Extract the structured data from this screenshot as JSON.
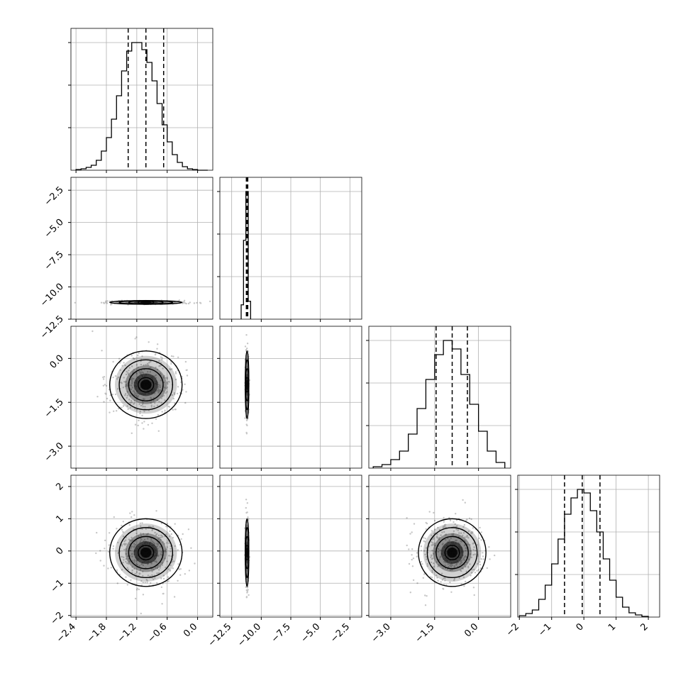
{
  "chart_data": {
    "type": "corner",
    "n_params": 4,
    "grid": true,
    "colors": {
      "line": "#000000",
      "grid": "#b0b0b0",
      "points": "#000000",
      "density": "#000000"
    },
    "params": [
      {
        "xlim": [
          -2.5,
          0.3
        ],
        "ticks": [
          -2.4,
          -1.8,
          -1.2,
          -0.6,
          0.0
        ],
        "tick_labels": [
          "−2.4",
          "−1.8",
          "−1.2",
          "−0.6",
          "0.0"
        ],
        "center": -1.02,
        "sigma": 0.34,
        "quantiles": [
          -1.37,
          -1.02,
          -0.67
        ]
      },
      {
        "xlim": [
          -13.5,
          -1.5
        ],
        "ticks": [
          -12.5,
          -10.0,
          -7.5,
          -5.0,
          -2.5
        ],
        "tick_labels": [
          "−12.5",
          "−10.0",
          "−7.5",
          "−5.0",
          "−2.5"
        ],
        "center": -11.2,
        "sigma": 0.06,
        "quantiles": [
          -11.26,
          -11.2,
          -11.14
        ]
      },
      {
        "xlim": [
          -3.75,
          1.1
        ],
        "ticks": [
          -3.0,
          -1.5,
          0.0
        ],
        "tick_labels": [
          "−3.0",
          "−1.5",
          "0.0"
        ],
        "center": -0.9,
        "sigma": 0.55,
        "quantiles": [
          -1.45,
          -0.9,
          -0.38
        ]
      },
      {
        "xlim": [
          -2.05,
          2.35
        ],
        "ticks": [
          -2,
          -1,
          0,
          1,
          2
        ],
        "tick_labels": [
          "−2",
          "−1",
          "0",
          "1",
          "2"
        ],
        "center": -0.05,
        "sigma": 0.5,
        "quantiles": [
          -0.6,
          -0.05,
          0.5
        ]
      }
    ],
    "histograms": [
      {
        "param": 0,
        "edges": [
          -2.4,
          -2.3,
          -2.2,
          -2.1,
          -2.0,
          -1.9,
          -1.8,
          -1.7,
          -1.6,
          -1.5,
          -1.4,
          -1.3,
          -1.2,
          -1.1,
          -1.0,
          -0.9,
          -0.8,
          -0.7,
          -0.6,
          -0.5,
          -0.4,
          -0.3,
          -0.2,
          -0.1,
          0.0,
          0.1,
          0.2
        ],
        "counts": [
          1,
          2,
          4,
          7,
          14,
          27,
          46,
          72,
          105,
          140,
          168,
          180,
          180,
          170,
          152,
          126,
          94,
          64,
          40,
          22,
          11,
          5,
          2,
          1,
          0,
          0
        ]
      },
      {
        "param": 1,
        "edges": [
          -11.7,
          -11.5,
          -11.3,
          -11.1,
          -10.9
        ],
        "counts": [
          20,
          110,
          178,
          25
        ]
      },
      {
        "param": 2,
        "edges": [
          -3.6,
          -3.3,
          -3.0,
          -2.7,
          -2.4,
          -2.1,
          -1.8,
          -1.5,
          -1.2,
          -0.9,
          -0.6,
          -0.3,
          0.0,
          0.3,
          0.6,
          0.9
        ],
        "counts": [
          2,
          5,
          12,
          24,
          48,
          84,
          125,
          160,
          180,
          168,
          132,
          90,
          52,
          24,
          8
        ]
      },
      {
        "param": 3,
        "edges": [
          -2.0,
          -1.8,
          -1.6,
          -1.4,
          -1.2,
          -1.0,
          -0.8,
          -0.6,
          -0.4,
          -0.2,
          0.0,
          0.2,
          0.4,
          0.6,
          0.8,
          1.0,
          1.2,
          1.4,
          1.6,
          1.8,
          2.0
        ],
        "counts": [
          2,
          5,
          10,
          25,
          45,
          75,
          110,
          145,
          168,
          180,
          175,
          150,
          120,
          82,
          52,
          28,
          14,
          6,
          3,
          1
        ]
      }
    ],
    "pairs": [
      {
        "row": 1,
        "col": 0
      },
      {
        "row": 2,
        "col": 0
      },
      {
        "row": 2,
        "col": 1
      },
      {
        "row": 3,
        "col": 0
      },
      {
        "row": 3,
        "col": 1
      },
      {
        "row": 3,
        "col": 2
      }
    ],
    "ylim": [
      null,
      [
        -12.5,
        -1.5
      ],
      [
        -3.75,
        1.1
      ],
      [
        -2.05,
        2.35
      ]
    ],
    "y_ticks": [
      null,
      [
        -2.5,
        -5.0,
        -7.5,
        -10.0,
        -12.5
      ],
      [
        0.0,
        -1.5,
        -3.0
      ],
      [
        2,
        1,
        0,
        -1,
        -2
      ]
    ],
    "y_tick_labels": [
      null,
      [
        "−2.5",
        "−5.0",
        "−7.5",
        "−10.0",
        "−12.5"
      ],
      [
        "0.0",
        "−1.5",
        "−3.0"
      ],
      [
        "2",
        "1",
        "0",
        "−1",
        "−2"
      ]
    ]
  }
}
